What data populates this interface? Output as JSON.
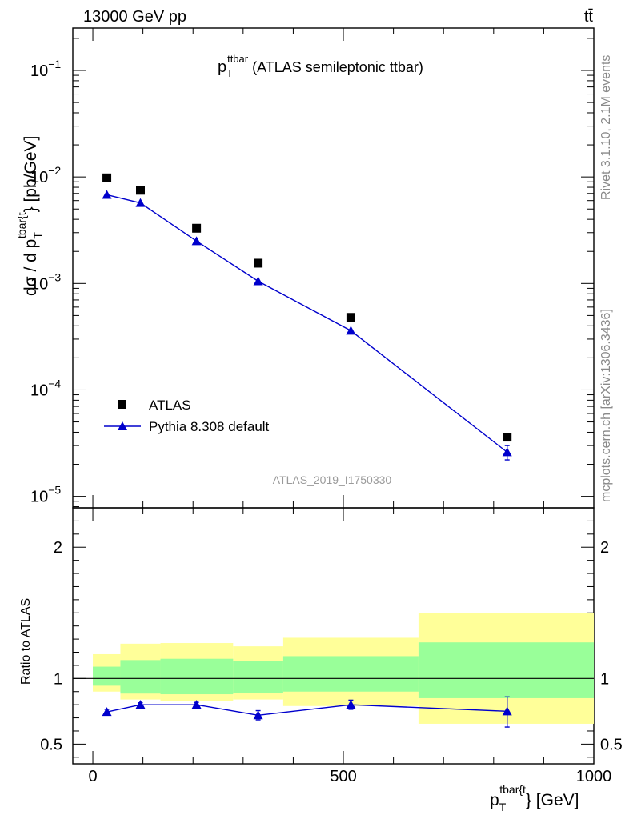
{
  "header": {
    "energy_label": "13000 GeV pp",
    "process_label": "tt̄"
  },
  "side_text": {
    "rivet": "Rivet 3.1.10,  2.1M events",
    "mcplots": "mcplots.cern.ch [arXiv:1306.3436]"
  },
  "analysis_label": "ATLAS_2019_I1750330",
  "chart_data": [
    {
      "type": "scatter",
      "title": {
        "main": "p",
        "sub": "T",
        "sup": "ttbar",
        "rest": " (ATLAS semileptonic ttbar)"
      },
      "ylabel": {
        "prefix": "dσ / d p",
        "sub": "T",
        "sup": "tbar{t",
        "suffix": "} [pb/GeV]"
      },
      "yscale": "log",
      "ylim": [
        7.8e-06,
        0.25
      ],
      "xlim": [
        -40,
        1000
      ],
      "y_ticks": [
        {
          "value": 0.1,
          "base": "10",
          "exp": "−1"
        },
        {
          "value": 0.01,
          "base": "10",
          "exp": "−2"
        },
        {
          "value": 0.001,
          "base": "10",
          "exp": "−3"
        },
        {
          "value": 0.0001,
          "base": "10",
          "exp": "−4"
        },
        {
          "value": 1e-05,
          "base": "10",
          "exp": "−5"
        }
      ],
      "legend_position": "bottom-left",
      "series": [
        {
          "name": "ATLAS",
          "color": "#000000",
          "marker": "square",
          "x": [
            28,
            95,
            207,
            330,
            515,
            827
          ],
          "y": [
            0.0098,
            0.0075,
            0.0033,
            0.00155,
            0.00048,
            3.6e-05
          ]
        },
        {
          "name": "Pythia 8.308 default",
          "color": "#0000cc",
          "marker": "triangle",
          "x": [
            28,
            95,
            207,
            330,
            515,
            827
          ],
          "y": [
            0.0068,
            0.0057,
            0.0025,
            0.00105,
            0.00036,
            2.6e-05
          ],
          "yerr_low": [
            0,
            0,
            0,
            0,
            0,
            4e-06
          ],
          "yerr_high": [
            0,
            0,
            0,
            0,
            0,
            4e-06
          ]
        }
      ]
    },
    {
      "type": "scatter",
      "ylabel": "Ratio to ATLAS",
      "xlabel": {
        "prefix": "p",
        "sub": "T",
        "sup": "tbar{t",
        "suffix": "} [GeV]"
      },
      "ylim": [
        0.35,
        2.3
      ],
      "xlim": [
        -40,
        1000
      ],
      "y_ticks": [
        {
          "value": 0.5,
          "label": "0.5"
        },
        {
          "value": 1,
          "label": "1"
        },
        {
          "value": 2,
          "label": "2"
        }
      ],
      "x_ticks": [
        {
          "value": 0,
          "label": "0"
        },
        {
          "value": 500,
          "label": "500"
        },
        {
          "value": 1000,
          "label": "1000"
        }
      ],
      "reference_line": 1,
      "bands": [
        {
          "x_low": 0,
          "x_high": 55,
          "inner": [
            0.945,
            1.09
          ],
          "outer": [
            0.9,
            1.185
          ]
        },
        {
          "x_low": 55,
          "x_high": 135,
          "inner": [
            0.885,
            1.14
          ],
          "outer": [
            0.84,
            1.265
          ]
        },
        {
          "x_low": 135,
          "x_high": 280,
          "inner": [
            0.88,
            1.15
          ],
          "outer": [
            0.83,
            1.27
          ]
        },
        {
          "x_low": 280,
          "x_high": 380,
          "inner": [
            0.89,
            1.13
          ],
          "outer": [
            0.84,
            1.245
          ]
        },
        {
          "x_low": 380,
          "x_high": 650,
          "inner": [
            0.9,
            1.17
          ],
          "outer": [
            0.79,
            1.31
          ]
        },
        {
          "x_low": 650,
          "x_high": 1000,
          "inner": [
            0.85,
            1.275
          ],
          "outer": [
            0.655,
            1.5
          ]
        }
      ],
      "band_colors": {
        "inner": "#99ff99",
        "outer": "#ffff99"
      },
      "series": [
        {
          "name": "Pythia 8.308 default",
          "color": "#0000cc",
          "marker": "triangle",
          "x": [
            28,
            95,
            207,
            330,
            515,
            827
          ],
          "y": [
            0.745,
            0.8,
            0.8,
            0.72,
            0.8,
            0.75
          ],
          "yerr_low": [
            0.02,
            0.015,
            0.018,
            0.035,
            0.035,
            0.12
          ],
          "yerr_high": [
            0.02,
            0.015,
            0.018,
            0.035,
            0.035,
            0.11
          ]
        }
      ]
    }
  ]
}
